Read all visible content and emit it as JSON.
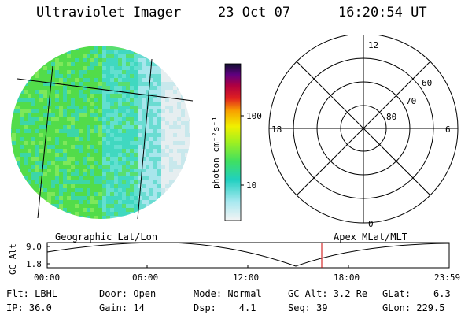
{
  "header": {
    "instrument": "Ultraviolet Imager",
    "date": "23 Oct 07",
    "time": "16:20:54 UT"
  },
  "colorbar": {
    "unit_label": "photon cm⁻²s⁻¹",
    "tick_labels": [
      "100",
      "10"
    ]
  },
  "polar_plot": {
    "clock_labels": {
      "top": "12",
      "left": "18",
      "right": "6",
      "bottom": "0"
    },
    "lat_labels": [
      "60",
      "70",
      "80"
    ]
  },
  "timeline": {
    "left_label": "Geographic Lat/Lon",
    "right_label": "Apex MLat/MLT",
    "axis_title": "GC Alt",
    "y_ticks": [
      "9.0",
      "1.8"
    ],
    "x_ticks": [
      "00:00",
      "06:00",
      "12:00",
      "18:00",
      "23:59"
    ],
    "marker_color": "#cc0000"
  },
  "status": {
    "flt": "Flt: LBHL",
    "ip": "IP: 36.0",
    "door": "Door: Open",
    "gain": "Gain: 14",
    "mode": "Mode: Normal",
    "dsp": "Dsp:    4.1",
    "gc_alt": "GC Alt: 3.2 Re",
    "seq": "Seq: 39",
    "glat": "GLat:    6.3",
    "glon": "GLon: 229.5"
  }
}
